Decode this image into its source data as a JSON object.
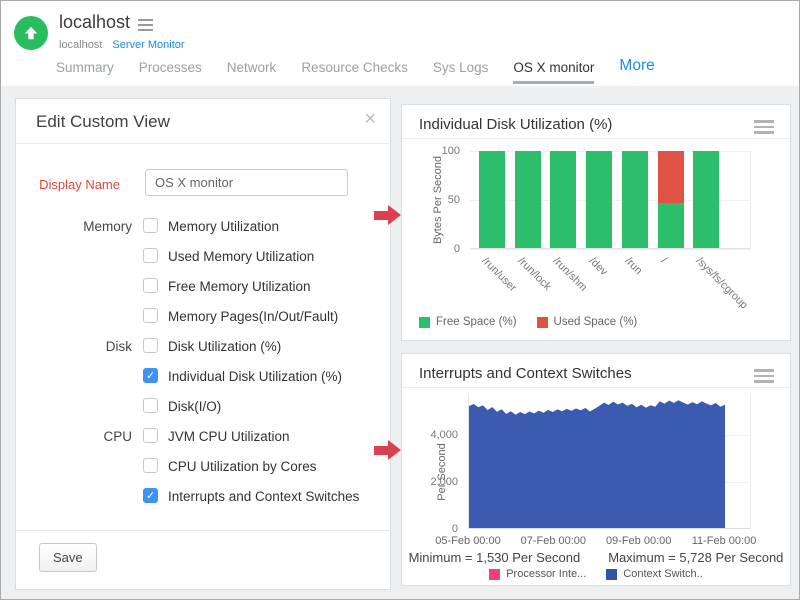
{
  "header": {
    "title": "localhost",
    "breadcrumb": {
      "host": "localhost",
      "link": "Server Monitor"
    },
    "tabs": [
      {
        "label": "Summary"
      },
      {
        "label": "Processes"
      },
      {
        "label": "Network"
      },
      {
        "label": "Resource Checks"
      },
      {
        "label": "Sys Logs"
      },
      {
        "label": "OS X monitor",
        "active": true
      },
      {
        "label": "More",
        "accent": true
      }
    ]
  },
  "panel": {
    "title": "Edit Custom View",
    "close_label": "×",
    "display_name_label": "Display Name",
    "display_name_value": "OS X monitor",
    "groups": [
      {
        "label": "Memory",
        "options": [
          {
            "label": "Memory Utilization",
            "checked": false
          },
          {
            "label": "Used Memory Utilization",
            "checked": false
          },
          {
            "label": "Free Memory Utilization",
            "checked": false
          },
          {
            "label": "Memory Pages(In/Out/Fault)",
            "checked": false
          }
        ]
      },
      {
        "label": "Disk",
        "options": [
          {
            "label": "Disk Utilization (%)",
            "checked": false
          },
          {
            "label": "Individual Disk Utilization (%)",
            "checked": true
          },
          {
            "label": "Disk(I/O)",
            "checked": false
          }
        ]
      },
      {
        "label": "CPU",
        "options": [
          {
            "label": "JVM CPU Utilization",
            "checked": false
          },
          {
            "label": "CPU Utilization by Cores",
            "checked": false
          },
          {
            "label": "Interrupts and Context Switches",
            "checked": true
          }
        ]
      }
    ],
    "save_label": "Save"
  },
  "colors": {
    "green": "#2dbe6c",
    "red": "#e05243",
    "blue_area": "#3a5bb0",
    "pink": "#f4407c",
    "legend_blue": "#2f55a8",
    "accent_blue": "#1e88e5",
    "arrow_red": "#d9414e"
  },
  "chart_data": [
    {
      "type": "bar",
      "stacked": true,
      "title": "Individual Disk Utilization (%)",
      "ylabel": "Bytes Per Second",
      "ylim": [
        0,
        100
      ],
      "yticks": [
        0,
        50,
        100
      ],
      "grid": true,
      "legend_position": "bottom",
      "categories": [
        "/run/user",
        "/run/lock",
        "/run/shm",
        "/dev",
        "/run",
        "/",
        "/sys/fs/cgroup"
      ],
      "series": [
        {
          "name": "Free Space (%)",
          "color": "#2dbe6c",
          "values": [
            100,
            100,
            100,
            100,
            100,
            47,
            100
          ]
        },
        {
          "name": "Used Space (%)",
          "color": "#e05243",
          "values": [
            0,
            0,
            0,
            0,
            0,
            53,
            0
          ]
        }
      ]
    },
    {
      "type": "area",
      "title": "Interrupts and Context Switches",
      "ylabel": "Per Second",
      "ylim": [
        0,
        5745
      ],
      "yticks": [
        0,
        2000,
        4000
      ],
      "ytick_labels": [
        "0",
        "2,000",
        "4,000"
      ],
      "grid": true,
      "legend_position": "bottom",
      "xticks": [
        "05-Feb 00:00",
        "07-Feb 00:00",
        "09-Feb 00:00",
        "11-Feb 00:00"
      ],
      "annotations": {
        "minimum": "Minimum = 1,530 Per Second",
        "maximum": "Maximum = 5,728 Per Second"
      },
      "series": [
        {
          "name": "Processor Inte...",
          "color": "#f4407c",
          "values": []
        },
        {
          "name": "Context Switch..",
          "color": "#3a5bb0",
          "legend_color": "#2f55a8",
          "values": [
            5230,
            5320,
            5180,
            5260,
            5060,
            5190,
            4990,
            5100,
            4900,
            5010,
            4860,
            4980,
            4890,
            5000,
            4920,
            5040,
            4950,
            5070,
            4980,
            5090,
            5010,
            5110,
            5030,
            5130,
            5050,
            5150,
            5000,
            5120,
            5240,
            5380,
            5280,
            5420,
            5300,
            5380,
            5240,
            5330,
            5180,
            5290,
            5160,
            5270,
            5200,
            5440,
            5330,
            5470,
            5360,
            5480,
            5380,
            5300,
            5400,
            5310,
            5430,
            5340,
            5260,
            5360,
            5200,
            5290
          ]
        }
      ]
    }
  ]
}
